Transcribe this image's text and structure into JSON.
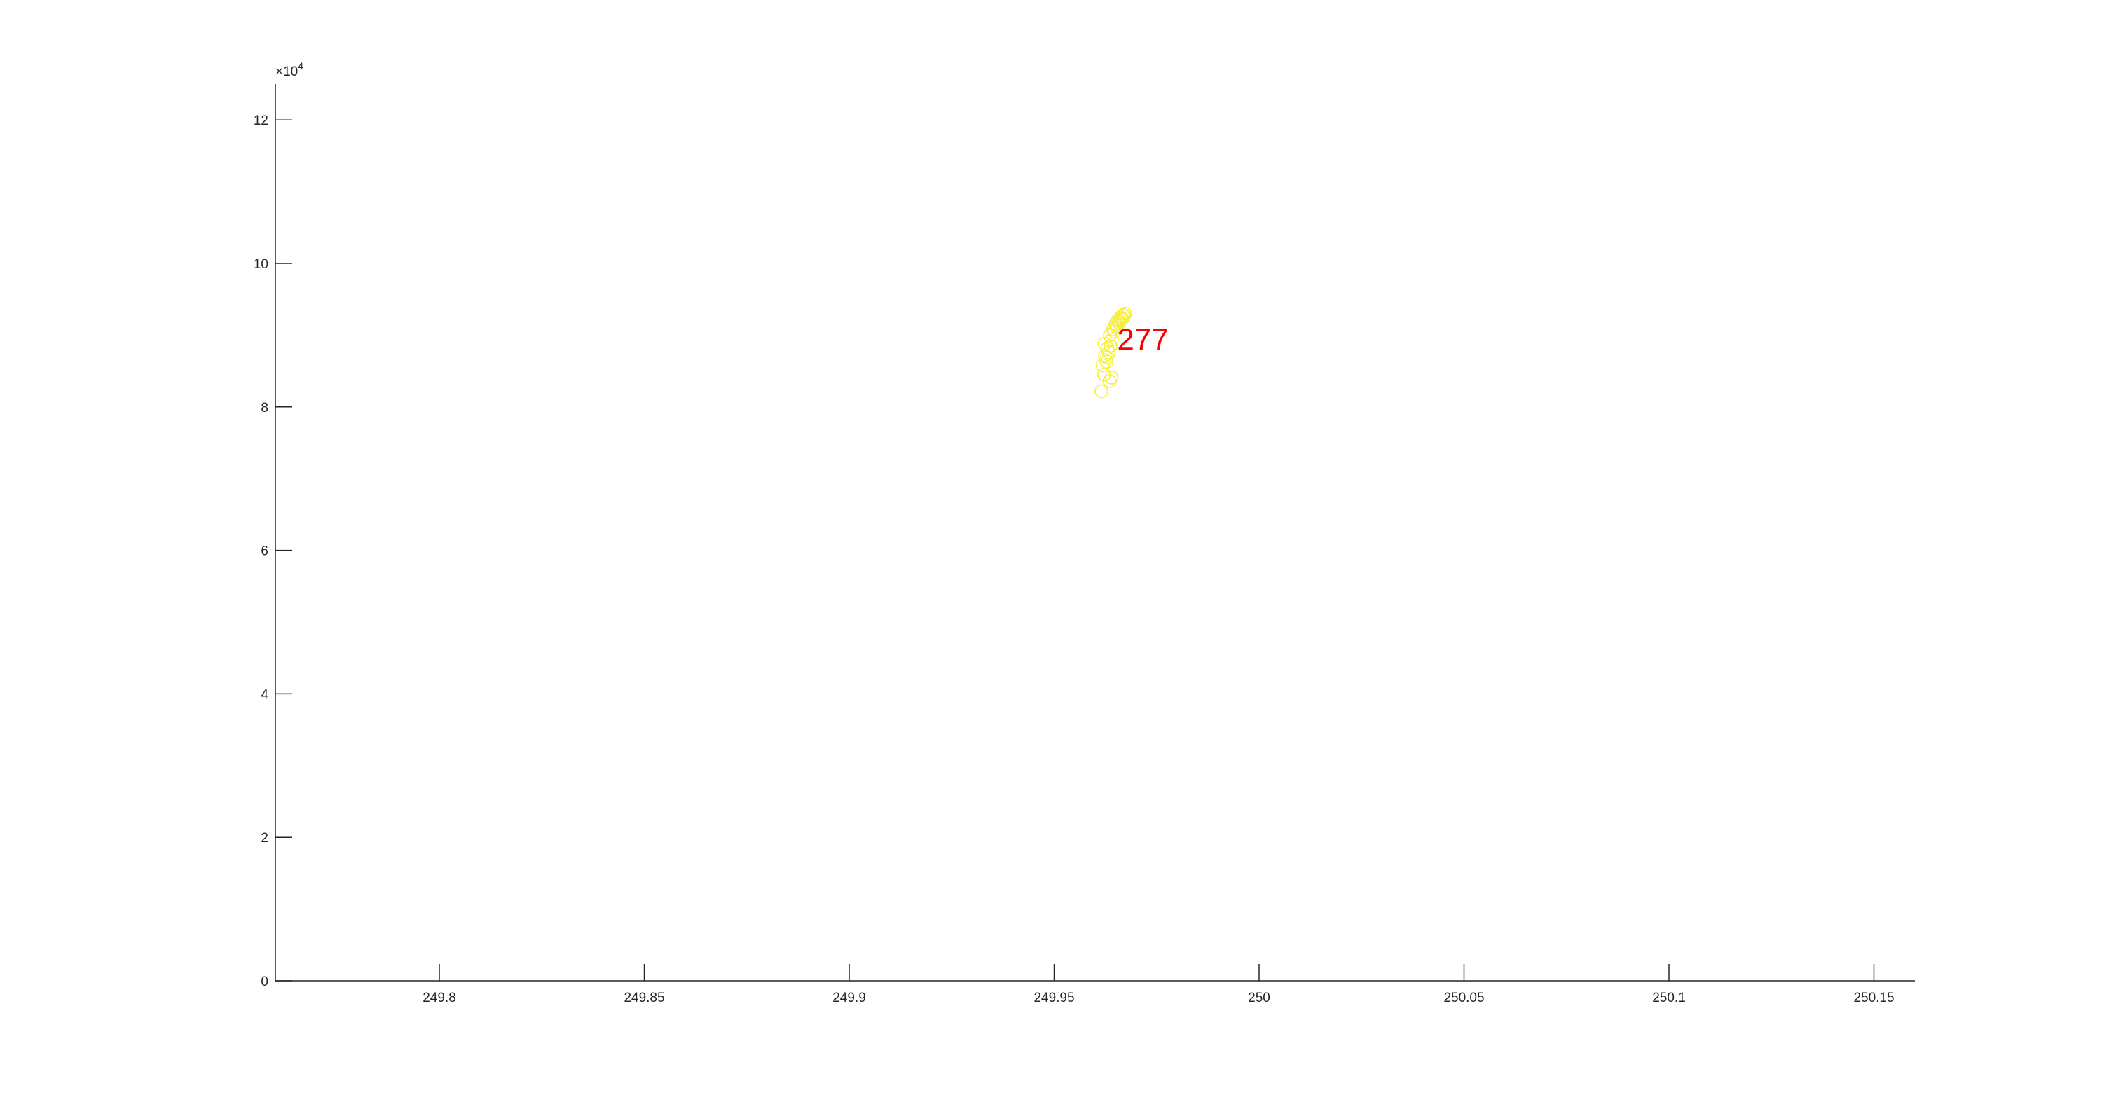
{
  "chart_data": {
    "type": "scatter",
    "title": "",
    "xlabel": "",
    "ylabel": "",
    "xlim": [
      249.76,
      250.16
    ],
    "ylim": [
      0,
      125000
    ],
    "x_ticks": [
      249.8,
      249.85,
      249.9,
      249.95,
      250,
      250.05,
      250.1,
      250.15
    ],
    "x_tick_labels": [
      "249.8",
      "249.85",
      "249.9",
      "249.95",
      "250",
      "250.05",
      "250.1",
      "250.15"
    ],
    "y_ticks": [
      0,
      20000,
      40000,
      60000,
      80000,
      100000,
      120000
    ],
    "y_tick_labels": [
      "0",
      "2",
      "4",
      "6",
      "8",
      "10",
      "12"
    ],
    "y_exponent_label": "×10",
    "y_exponent_power": "4",
    "grid": false,
    "legend": "none",
    "marker": "circle-open",
    "marker_color": "#f7f03c",
    "axis_color": "#262626",
    "series": [
      {
        "x": [
          249.9615,
          249.9622,
          249.9628,
          249.9633,
          249.9638,
          249.9641,
          249.9618,
          249.9624,
          249.963,
          249.9636,
          249.9644,
          249.965,
          249.9656,
          249.9662,
          249.9668,
          249.9673,
          249.9654,
          249.966,
          249.9666,
          249.9671,
          249.9647,
          249.9652,
          249.9658,
          249.9664,
          249.964,
          249.9635,
          249.9629,
          249.9623
        ],
        "y": [
          82200,
          84500,
          86300,
          87600,
          88500,
          89400,
          85800,
          87100,
          88200,
          90000,
          90800,
          91600,
          92100,
          92500,
          92800,
          93000,
          91300,
          91900,
          92300,
          92700,
          90500,
          91100,
          91700,
          92200,
          84100,
          83600,
          86900,
          88800
        ]
      }
    ],
    "annotations": [
      {
        "text": "277",
        "x": 249.964,
        "y": 89500,
        "color": "#ff0000"
      }
    ]
  }
}
